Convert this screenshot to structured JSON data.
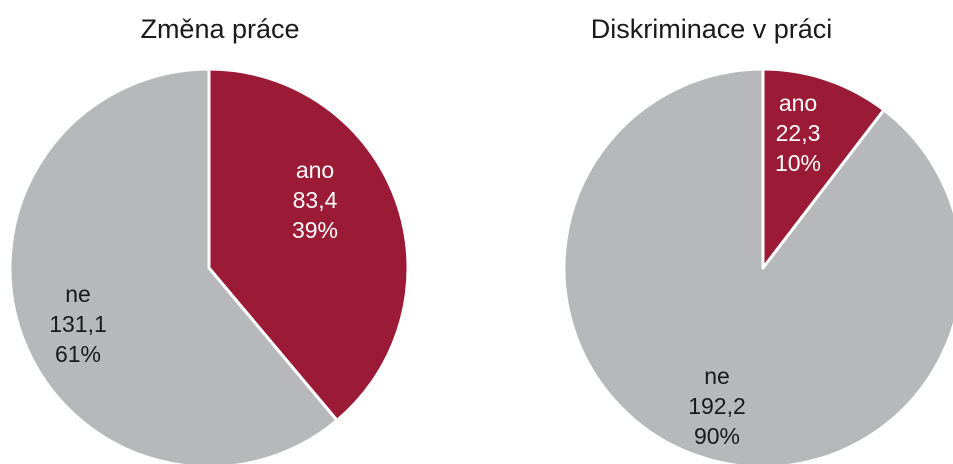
{
  "chart_data": [
    {
      "type": "pie",
      "title": "Změna práce",
      "slices": [
        {
          "label": "ano",
          "value": 83.4,
          "value_text": "83,4",
          "percent_text": "39%",
          "color": "#9b1b36"
        },
        {
          "label": "ne",
          "value": 131.1,
          "value_text": "131,1",
          "percent_text": "61%",
          "color": "#b7b8ba"
        }
      ]
    },
    {
      "type": "pie",
      "title": "Diskriminace v práci",
      "slices": [
        {
          "label": "ano",
          "value": 22.3,
          "value_text": "22,3",
          "percent_text": "10%",
          "color": "#9b1b36"
        },
        {
          "label": "ne",
          "value": 192.2,
          "value_text": "192,2",
          "percent_text": "90%",
          "color": "#b7b8ba"
        }
      ]
    }
  ]
}
